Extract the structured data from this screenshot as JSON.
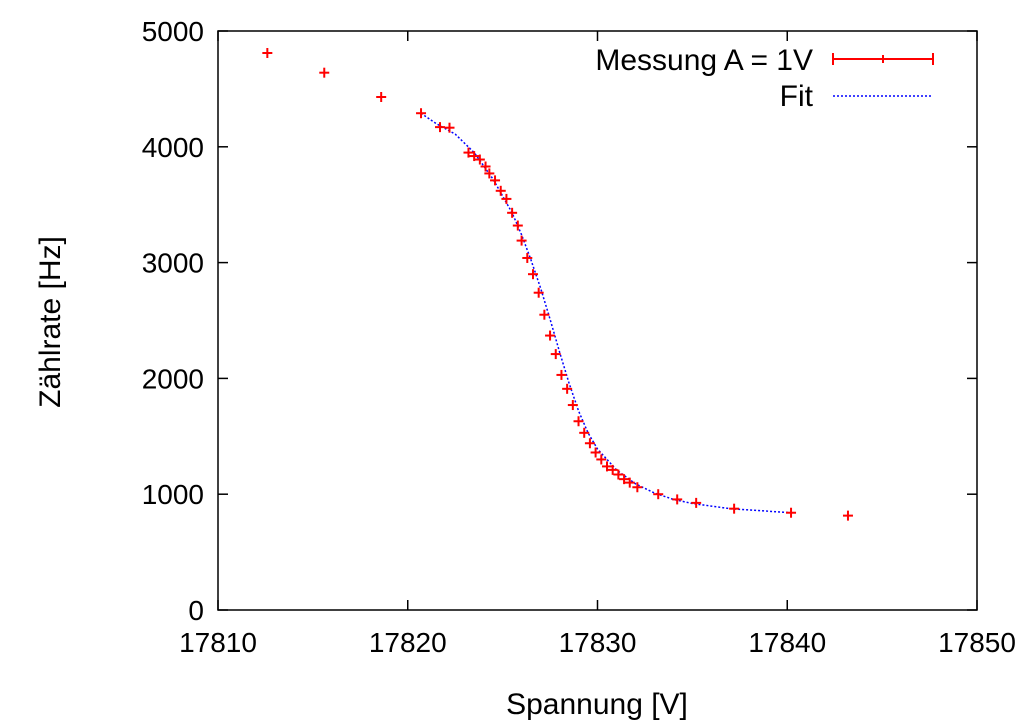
{
  "chart_data": {
    "type": "scatter",
    "xlabel": "Spannung [V]",
    "ylabel": "Zählrate [Hz]",
    "xlim": [
      17810,
      17850
    ],
    "ylim": [
      0,
      5000
    ],
    "xticks": [
      17810,
      17820,
      17830,
      17840,
      17850
    ],
    "yticks": [
      0,
      1000,
      2000,
      3000,
      4000,
      5000
    ],
    "grid": false,
    "legend_position": "top-right",
    "series": [
      {
        "name": "Messung A = 1V",
        "style": "points-with-errorbars",
        "color": "#ff0000",
        "x": [
          17812.6,
          17815.6,
          17818.6,
          17820.7,
          17821.7,
          17822.2,
          17823.2,
          17823.5,
          17823.8,
          17824.1,
          17824.3,
          17824.6,
          17824.9,
          17825.2,
          17825.5,
          17825.8,
          17826.0,
          17826.3,
          17826.6,
          17826.9,
          17827.2,
          17827.5,
          17827.8,
          17828.1,
          17828.4,
          17828.7,
          17829.0,
          17829.3,
          17829.6,
          17829.9,
          17830.2,
          17830.5,
          17830.8,
          17831.1,
          17831.4,
          17831.7,
          17832.1,
          17833.2,
          17834.2,
          17835.2,
          17837.2,
          17840.2,
          17843.2
        ],
        "y": [
          4810,
          4640,
          4430,
          4290,
          4170,
          4165,
          3950,
          3920,
          3890,
          3830,
          3770,
          3710,
          3620,
          3550,
          3430,
          3320,
          3190,
          3040,
          2900,
          2740,
          2550,
          2370,
          2210,
          2030,
          1910,
          1770,
          1630,
          1530,
          1440,
          1360,
          1300,
          1240,
          1210,
          1170,
          1130,
          1100,
          1060,
          1000,
          955,
          925,
          875,
          840,
          815
        ]
      },
      {
        "name": "Fit",
        "style": "dotted-line",
        "color": "#0000ff",
        "x": [
          17820.7,
          17821.5,
          17822.5,
          17823.5,
          17824.5,
          17825.5,
          17826.0,
          17826.5,
          17827.0,
          17827.5,
          17828.0,
          17828.5,
          17829.0,
          17829.5,
          17830.0,
          17831.0,
          17832.0,
          17833.0,
          17834.0,
          17835.0,
          17837.0,
          17840.2
        ],
        "y": [
          4290,
          4200,
          4110,
          3950,
          3720,
          3430,
          3240,
          3020,
          2780,
          2510,
          2230,
          1960,
          1720,
          1530,
          1390,
          1210,
          1090,
          1010,
          955,
          920,
          875,
          840
        ]
      }
    ]
  }
}
